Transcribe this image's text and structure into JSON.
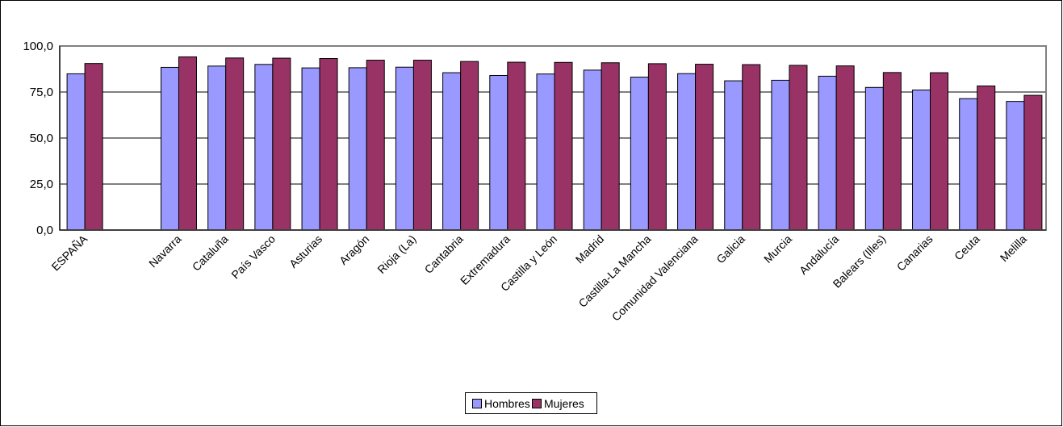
{
  "chart_data": {
    "type": "bar",
    "title": "",
    "xlabel": "",
    "ylabel": "",
    "ylim": [
      0,
      100
    ],
    "yticks": [
      "0,0",
      "25,0",
      "50,0",
      "75,0",
      "100,0"
    ],
    "grid": true,
    "legend_position": "bottom",
    "categories": [
      "ESPAÑA",
      "",
      "Navarra",
      "Cataluña",
      "País Vasco",
      "Asturias",
      "Aragón",
      "Rioja (La)",
      "Cantabria",
      "Extremadura",
      "Castilla y León",
      "Madrid",
      "Castilla-La Mancha",
      "Comunidad Valenciana",
      "Galicia",
      "Murcia",
      "Andalucía",
      "Balears (Illes)",
      "Canarias",
      "Ceuta",
      "Melilla"
    ],
    "series": [
      {
        "name": "Hombres",
        "color": "#9999ff",
        "values": [
          84.9,
          null,
          88.4,
          89.1,
          90.0,
          88.1,
          88.2,
          88.5,
          85.5,
          84.0,
          84.8,
          86.9,
          83.1,
          85.0,
          81.1,
          81.4,
          83.6,
          77.5,
          76.1,
          71.4,
          69.9
        ]
      },
      {
        "name": "Mujeres",
        "color": "#993366",
        "values": [
          90.5,
          null,
          94.1,
          93.5,
          93.4,
          93.2,
          92.3,
          92.3,
          91.6,
          91.2,
          91.1,
          90.9,
          90.4,
          90.1,
          89.9,
          89.5,
          89.2,
          85.6,
          85.5,
          78.3,
          73.2
        ]
      }
    ]
  }
}
